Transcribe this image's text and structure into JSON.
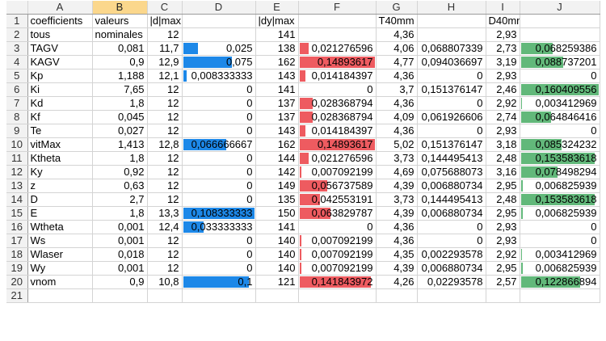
{
  "columns": [
    "A",
    "B",
    "C",
    "D",
    "E",
    "F",
    "G",
    "H",
    "I",
    "J"
  ],
  "selected_column": "B",
  "bar_colors": {
    "D": "#1d88e8",
    "F": "#ee5b60",
    "J": "#62b87a"
  },
  "bar_max": {
    "D": 0.108333333,
    "F": 0.14893617,
    "J": 0.160409556
  },
  "rows": [
    {
      "n": "1",
      "A": "coefficients",
      "B": "valeurs",
      "C": "|d|max",
      "D": "",
      "E": "|dy|max",
      "F": "",
      "G": "T40mm",
      "H": "",
      "I": "D40mm",
      "J": ""
    },
    {
      "n": "2",
      "A": "tous",
      "B": "nominales",
      "C": "12",
      "D": "",
      "E": "141",
      "F": "",
      "G": "4,36",
      "H": "",
      "I": "2,93",
      "J": ""
    },
    {
      "n": "3",
      "A": "TAGV",
      "B": "0,081",
      "C": "11,7",
      "D": "0,025",
      "E": "138",
      "F": "0,021276596",
      "G": "4,06",
      "H": "0,068807339",
      "I": "2,73",
      "J": "0,068259386"
    },
    {
      "n": "4",
      "A": "KAGV",
      "B": "0,9",
      "C": "12,9",
      "D": "0,075",
      "E": "162",
      "F": "0,14893617",
      "G": "4,77",
      "H": "0,094036697",
      "I": "3,19",
      "J": "0,088737201"
    },
    {
      "n": "5",
      "A": "Kp",
      "B": "1,188",
      "C": "12,1",
      "D": "0,008333333",
      "E": "143",
      "F": "0,014184397",
      "G": "4,36",
      "H": "0",
      "I": "2,93",
      "J": "0"
    },
    {
      "n": "6",
      "A": "Ki",
      "B": "7,65",
      "C": "12",
      "D": "0",
      "E": "141",
      "F": "0",
      "G": "3,7",
      "H": "0,151376147",
      "I": "2,46",
      "J": "0,160409556"
    },
    {
      "n": "7",
      "A": "Kd",
      "B": "1,8",
      "C": "12",
      "D": "0",
      "E": "137",
      "F": "0,028368794",
      "G": "4,36",
      "H": "0",
      "I": "2,92",
      "J": "0,003412969"
    },
    {
      "n": "8",
      "A": "Kf",
      "B": "0,045",
      "C": "12",
      "D": "0",
      "E": "137",
      "F": "0,028368794",
      "G": "4,09",
      "H": "0,061926606",
      "I": "2,74",
      "J": "0,064846416"
    },
    {
      "n": "9",
      "A": "Te",
      "B": "0,027",
      "C": "12",
      "D": "0",
      "E": "143",
      "F": "0,014184397",
      "G": "4,36",
      "H": "0",
      "I": "2,93",
      "J": "0"
    },
    {
      "n": "10",
      "A": "vitMax",
      "B": "1,413",
      "C": "12,8",
      "D": "0,066666667",
      "E": "162",
      "F": "0,14893617",
      "G": "5,02",
      "H": "0,151376147",
      "I": "3,18",
      "J": "0,085324232"
    },
    {
      "n": "11",
      "A": "Ktheta",
      "B": "1,8",
      "C": "12",
      "D": "0",
      "E": "144",
      "F": "0,021276596",
      "G": "3,73",
      "H": "0,144495413",
      "I": "2,48",
      "J": "0,153583618"
    },
    {
      "n": "12",
      "A": "Ky",
      "B": "0,92",
      "C": "12",
      "D": "0",
      "E": "142",
      "F": "0,007092199",
      "G": "4,69",
      "H": "0,075688073",
      "I": "3,16",
      "J": "0,078498294"
    },
    {
      "n": "13",
      "A": "z",
      "B": "0,63",
      "C": "12",
      "D": "0",
      "E": "149",
      "F": "0,056737589",
      "G": "4,39",
      "H": "0,006880734",
      "I": "2,95",
      "J": "0,006825939"
    },
    {
      "n": "14",
      "A": "D",
      "B": "2,7",
      "C": "12",
      "D": "0",
      "E": "135",
      "F": "0,042553191",
      "G": "3,73",
      "H": "0,144495413",
      "I": "2,48",
      "J": "0,153583618"
    },
    {
      "n": "15",
      "A": "E",
      "B": "1,8",
      "C": "13,3",
      "D": "0,108333333",
      "E": "150",
      "F": "0,063829787",
      "G": "4,39",
      "H": "0,006880734",
      "I": "2,95",
      "J": "0,006825939"
    },
    {
      "n": "16",
      "A": "Wtheta",
      "B": "0,001",
      "C": "12,4",
      "D": "0,033333333",
      "E": "141",
      "F": "0",
      "G": "4,36",
      "H": "0",
      "I": "2,93",
      "J": "0"
    },
    {
      "n": "17",
      "A": "Ws",
      "B": "0,001",
      "C": "12",
      "D": "0",
      "E": "140",
      "F": "0,007092199",
      "G": "4,36",
      "H": "0",
      "I": "2,93",
      "J": "0"
    },
    {
      "n": "18",
      "A": "Wlaser",
      "B": "0,018",
      "C": "12",
      "D": "0",
      "E": "140",
      "F": "0,007092199",
      "G": "4,35",
      "H": "0,002293578",
      "I": "2,92",
      "J": "0,003412969"
    },
    {
      "n": "19",
      "A": "Wy",
      "B": "0,001",
      "C": "12",
      "D": "0",
      "E": "140",
      "F": "0,007092199",
      "G": "4,39",
      "H": "0,006880734",
      "I": "2,95",
      "J": "0,006825939"
    },
    {
      "n": "20",
      "A": "vnom",
      "B": "0,9",
      "C": "10,8",
      "D": "0,1",
      "E": "121",
      "F": "0,141843972",
      "G": "4,26",
      "H": "0,02293578",
      "I": "2,57",
      "J": "0,122866894"
    },
    {
      "n": "21",
      "A": "",
      "B": "",
      "C": "",
      "D": "",
      "E": "",
      "F": "",
      "G": "",
      "H": "",
      "I": "",
      "J": ""
    }
  ]
}
